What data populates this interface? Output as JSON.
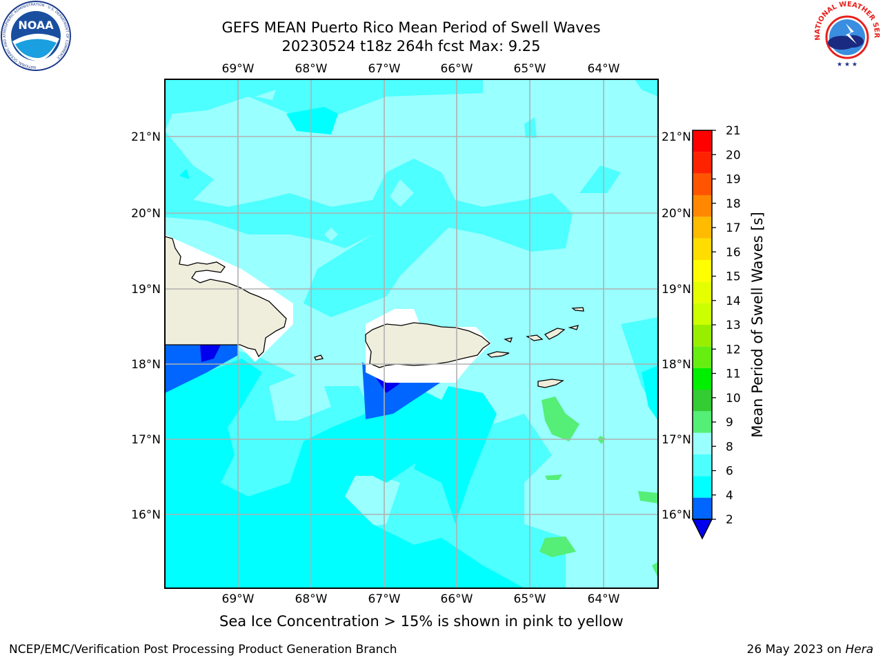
{
  "title": {
    "line1": "GEFS MEAN Puerto Rico Mean Period of Swell Waves",
    "line2": "20230524 t18z 264h fcst   Max: 9.25"
  },
  "logos": {
    "noaa_text": "NOAA",
    "noaa_ring": "NATIONAL OCEANIC AND ATMOSPHERIC ADMINISTRATION · U.S. DEPARTMENT OF COMMERCE",
    "nws_ring": "NATIONAL WEATHER SERVICE"
  },
  "map": {
    "lon_labels": [
      "69°W",
      "68°W",
      "67°W",
      "66°W",
      "65°W",
      "64°W"
    ],
    "lat_labels": [
      "21°N",
      "20°N",
      "19°N",
      "18°N",
      "17°N",
      "16°N"
    ],
    "ocean_color": "#99ffff",
    "land_color": "#efeddc"
  },
  "colorbar": {
    "label": "Mean Period of Swell Waves [s]",
    "ticks": [
      "2",
      "4",
      "6",
      "8",
      "9",
      "10",
      "11",
      "12",
      "13",
      "14",
      "15",
      "16",
      "17",
      "18",
      "19",
      "20",
      "21"
    ],
    "colors": [
      "#0066ff",
      "#00ffff",
      "#4dffff",
      "#99ffff",
      "#55ee77",
      "#33cc33",
      "#00ee00",
      "#66ee11",
      "#99ee00",
      "#ccff00",
      "#e6ff00",
      "#ffff00",
      "#ffdd00",
      "#ffbb00",
      "#ff8800",
      "#ff5500",
      "#ff2200",
      "#ff0000"
    ],
    "under_color": "#0000ee"
  },
  "ice_note": "Sea Ice Concentration > 15% is shown in pink to yellow",
  "footer": {
    "left": "NCEP/EMC/Verification Post Processing Product Generation Branch",
    "right_date": "26 May 2023 on ",
    "right_host": "Hera"
  }
}
